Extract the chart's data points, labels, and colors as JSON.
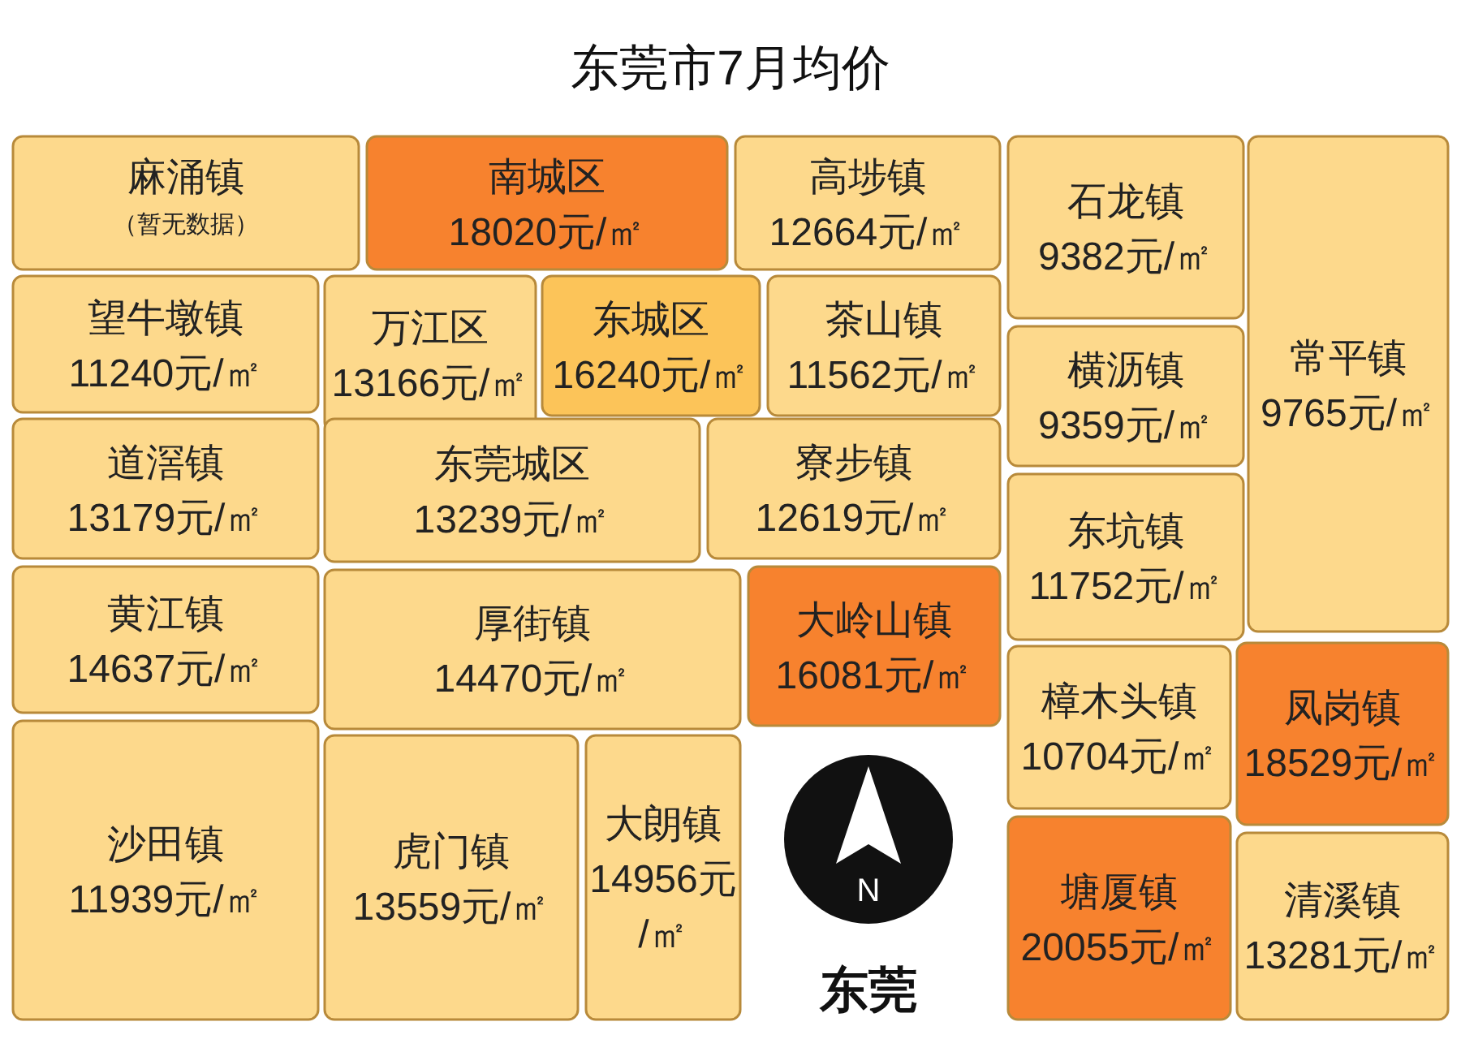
{
  "chart_data": {
    "type": "other",
    "title": "东莞市7月均价",
    "categories": [
      "麻涌镇",
      "南城区",
      "高埗镇",
      "石龙镇",
      "常平镇",
      "望牛墩镇",
      "万江区",
      "东城区",
      "茶山镇",
      "横沥镇",
      "道滘镇",
      "东莞城区",
      "寮步镇",
      "东坑镇",
      "黄江镇",
      "厚街镇",
      "大岭山镇",
      "樟木头镇",
      "凤岗镇",
      "沙田镇",
      "虎门镇",
      "大朗镇",
      "塘厦镇",
      "清溪镇"
    ],
    "values": [
      null,
      18020,
      12664,
      9382,
      9765,
      11240,
      13166,
      16240,
      11562,
      9359,
      13179,
      13239,
      12619,
      11752,
      14637,
      14470,
      16081,
      10704,
      18529,
      11939,
      13559,
      14956,
      20055,
      13281
    ],
    "value_labels": [
      "（暂无数据）",
      "18020元/㎡",
      "12664元/㎡",
      "9382元/㎡",
      "9765元/㎡",
      "11240元/㎡",
      "13166元/㎡",
      "16240元/㎡",
      "11562元/㎡",
      "9359元/㎡",
      "13179元/㎡",
      "13239元/㎡",
      "12619元/㎡",
      "11752元/㎡",
      "14637元/㎡",
      "14470元/㎡",
      "16081元/㎡",
      "10704元/㎡",
      "18529元/㎡",
      "11939元/㎡",
      "13559元/㎡",
      "14956元/㎡",
      "20055元/㎡",
      "13281元/㎡"
    ],
    "colors": [
      "#fdd98c",
      "#f7822e",
      "#fdd98c",
      "#fdd98c",
      "#fdd98c",
      "#fdd98c",
      "#fdd98c",
      "#fcc459",
      "#fdd98c",
      "#fdd98c",
      "#fdd98c",
      "#fdd98c",
      "#fdd98c",
      "#fdd98c",
      "#fdd98c",
      "#fdd98c",
      "#f7822e",
      "#fdd98c",
      "#f7822e",
      "#fdd98c",
      "#fdd98c",
      "#fdd98c",
      "#f7822e",
      "#fdd98c"
    ],
    "annotations": [
      "N",
      "东莞"
    ]
  }
}
